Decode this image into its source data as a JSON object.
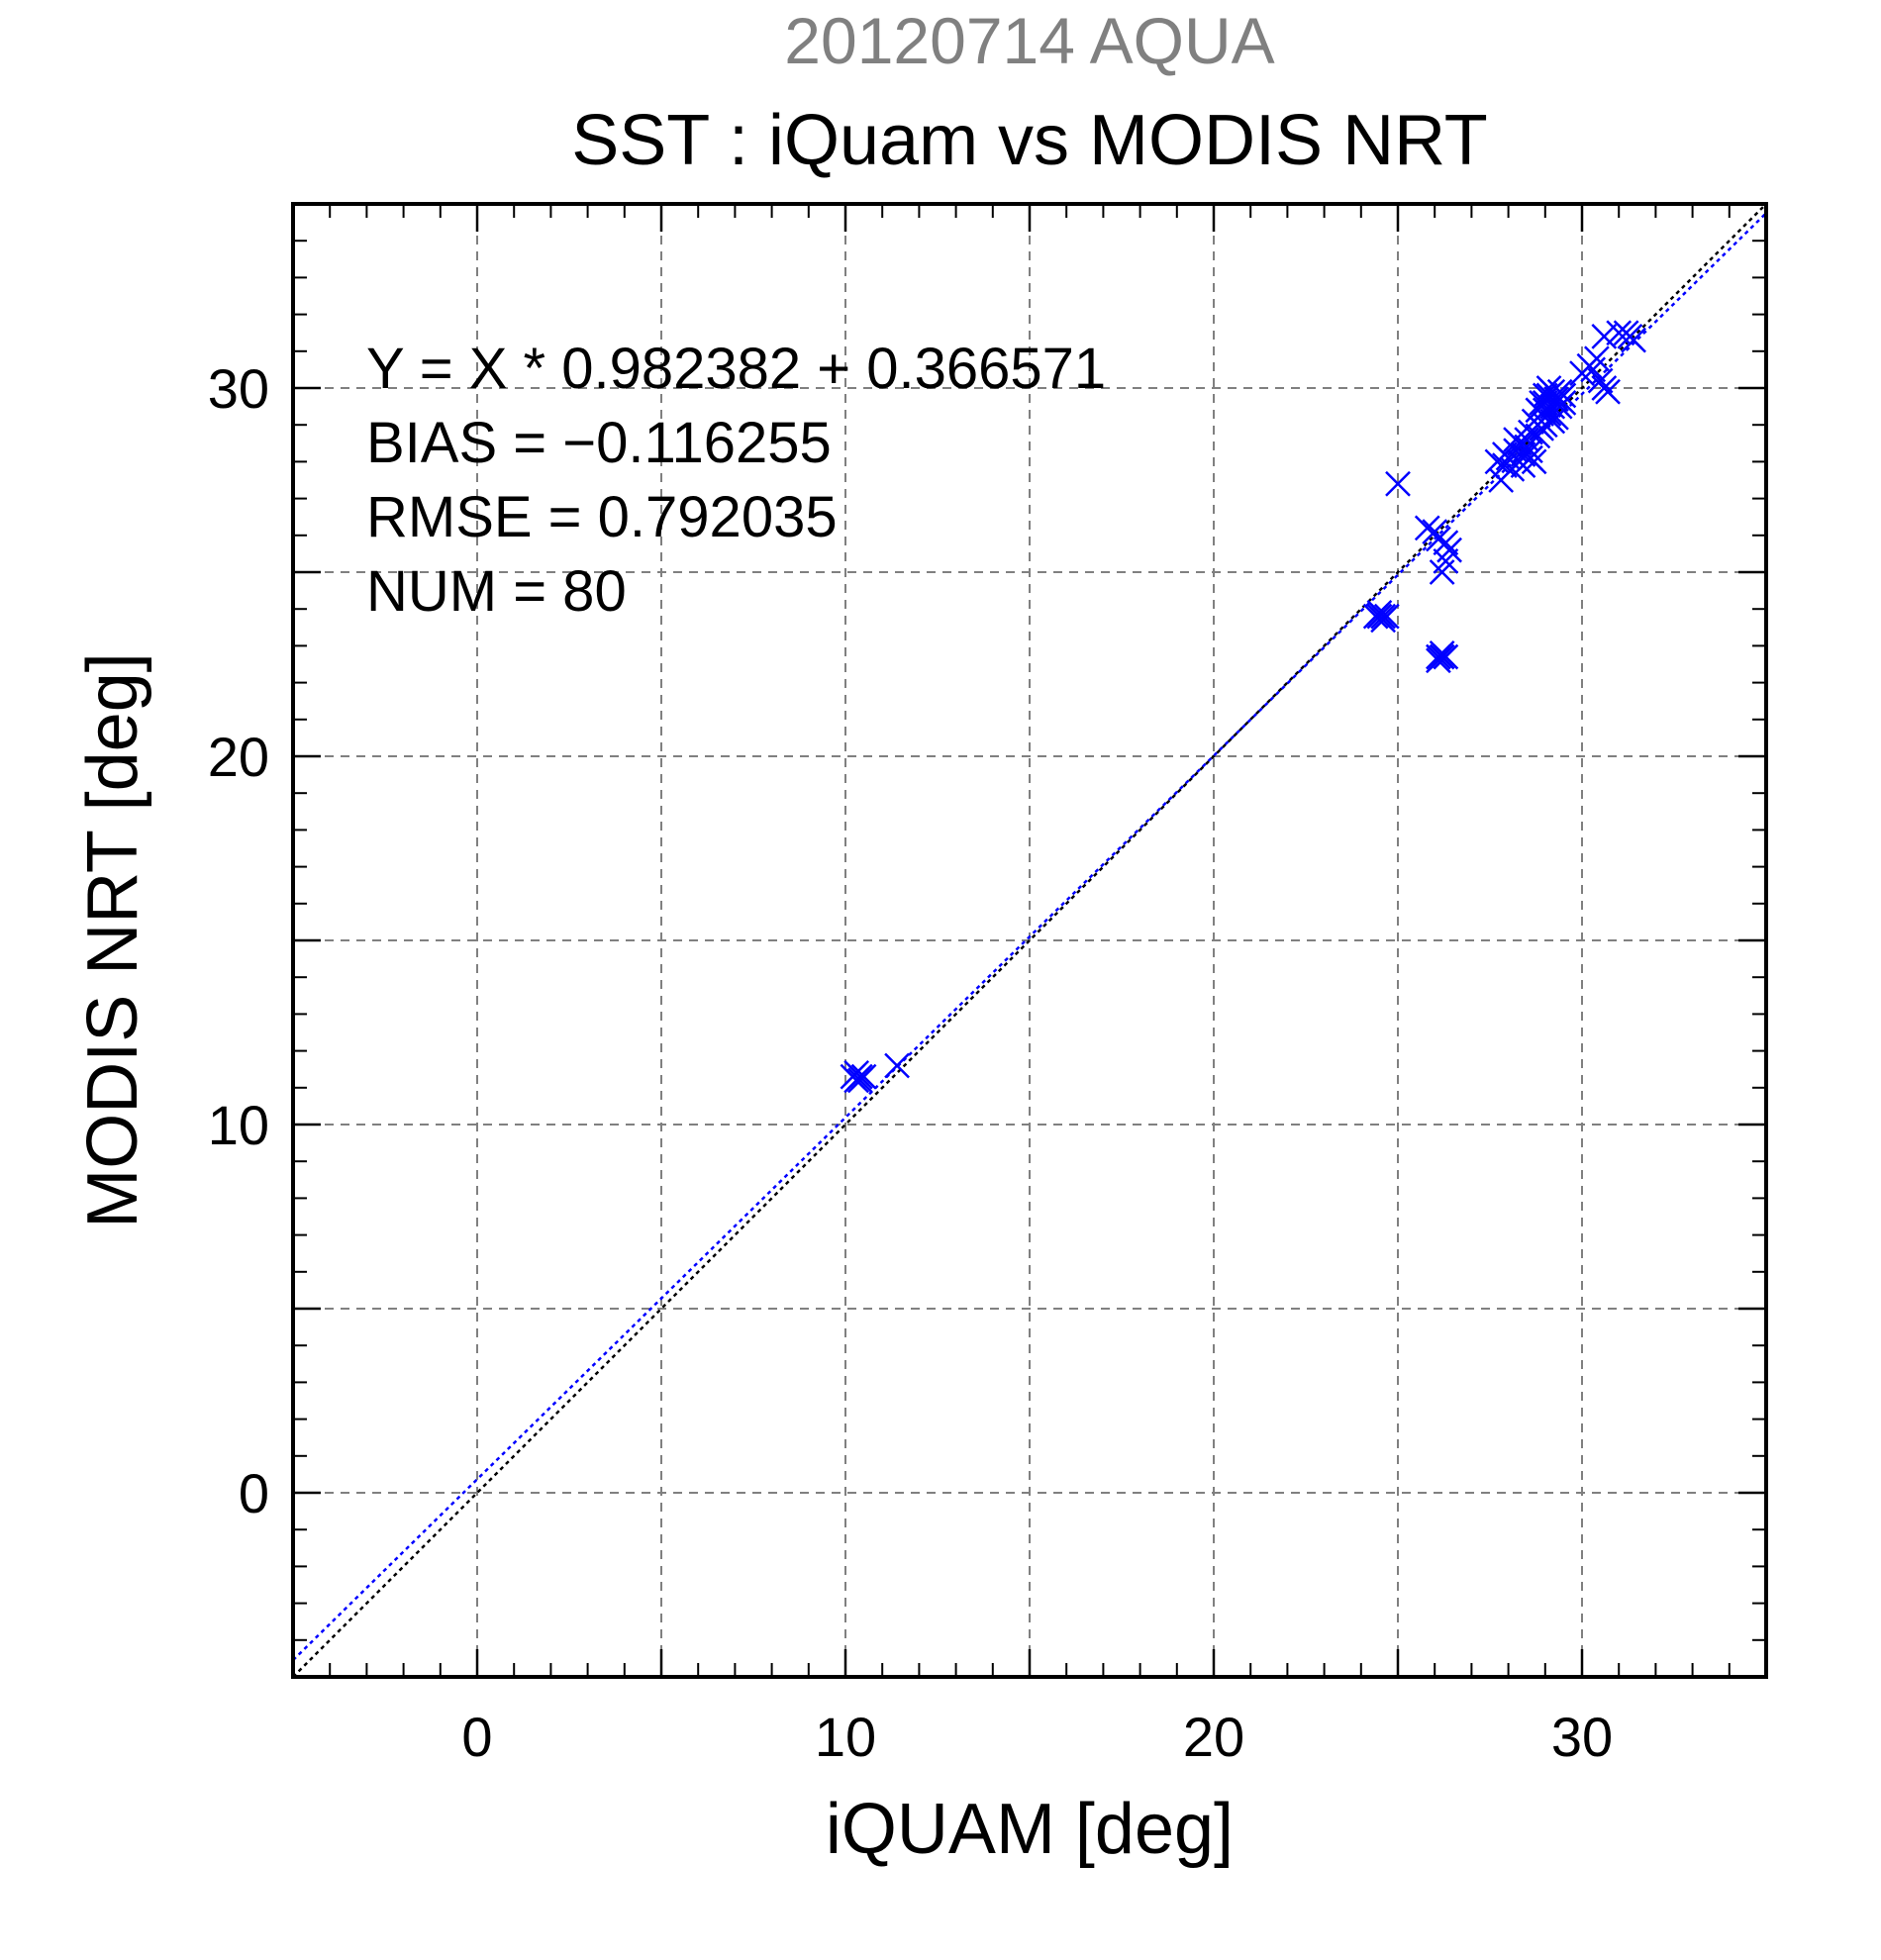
{
  "chart_data": {
    "type": "scatter",
    "supertitle": "20120714 AQUA",
    "title": "SST : iQuam vs MODIS NRT",
    "xlabel": "iQUAM [deg]",
    "ylabel": "MODIS NRT [deg]",
    "xlim": [
      -5,
      35
    ],
    "ylim": [
      -5,
      35
    ],
    "xticks": [
      0,
      10,
      20,
      30
    ],
    "yticks": [
      0,
      10,
      20,
      30
    ],
    "xtick_labels": [
      "0",
      "10",
      "20",
      "30"
    ],
    "ytick_labels": [
      "0",
      "10",
      "20",
      "30"
    ],
    "grid": true,
    "grid_step": 5,
    "annotations": [
      "Y = X * 0.982382 + 0.366571",
      "BIAS = −0.116255",
      "RMSE = 0.792035",
      "NUM = 80"
    ],
    "series": [
      {
        "marker": "x",
        "color": "#0000ff",
        "points": [
          [
            10.2,
            11.3
          ],
          [
            10.3,
            11.2
          ],
          [
            10.4,
            11.3
          ],
          [
            10.5,
            11.3
          ],
          [
            10.4,
            11.2
          ],
          [
            10.3,
            11.4
          ],
          [
            11.4,
            11.6
          ],
          [
            24.4,
            23.8
          ],
          [
            24.5,
            23.8
          ],
          [
            24.6,
            23.8
          ],
          [
            24.7,
            23.8
          ],
          [
            24.5,
            23.9
          ],
          [
            24.6,
            23.7
          ],
          [
            26.1,
            22.7
          ],
          [
            26.2,
            22.7
          ],
          [
            26.3,
            22.7
          ],
          [
            26.2,
            22.8
          ],
          [
            26.1,
            22.6
          ],
          [
            25.0,
            27.4
          ],
          [
            25.8,
            26.2
          ],
          [
            26.0,
            26.1
          ],
          [
            26.3,
            25.8
          ],
          [
            26.4,
            25.6
          ],
          [
            26.2,
            25.0
          ],
          [
            26.3,
            25.3
          ],
          [
            26.1,
            25.9
          ],
          [
            27.8,
            27.5
          ],
          [
            27.9,
            27.9
          ],
          [
            28.0,
            28.1
          ],
          [
            28.2,
            28.3
          ],
          [
            28.3,
            28.0
          ],
          [
            28.4,
            27.9
          ],
          [
            28.5,
            28.4
          ],
          [
            28.6,
            28.1
          ],
          [
            28.7,
            28.0
          ],
          [
            28.5,
            28.6
          ],
          [
            28.3,
            28.5
          ],
          [
            28.8,
            28.7
          ],
          [
            28.8,
            29.0
          ],
          [
            28.9,
            29.3
          ],
          [
            29.0,
            29.6
          ],
          [
            29.1,
            29.8
          ],
          [
            29.2,
            29.5
          ],
          [
            29.0,
            29.0
          ],
          [
            29.3,
            29.7
          ],
          [
            29.4,
            29.5
          ],
          [
            29.1,
            30.0
          ],
          [
            29.2,
            29.9
          ],
          [
            28.9,
            29.6
          ],
          [
            29.5,
            29.8
          ],
          [
            29.0,
            29.4
          ],
          [
            29.3,
            29.2
          ],
          [
            28.7,
            29.1
          ],
          [
            29.1,
            29.3
          ],
          [
            29.4,
            29.9
          ],
          [
            28.9,
            28.9
          ],
          [
            29.2,
            29.1
          ],
          [
            29.0,
            29.8
          ],
          [
            28.6,
            28.8
          ],
          [
            29.3,
            29.6
          ],
          [
            28.8,
            29.4
          ],
          [
            29.5,
            29.6
          ],
          [
            30.0,
            30.4
          ],
          [
            30.2,
            30.6
          ],
          [
            30.4,
            30.8
          ],
          [
            30.5,
            30.2
          ],
          [
            30.6,
            30.0
          ],
          [
            30.7,
            29.9
          ],
          [
            30.3,
            30.5
          ],
          [
            30.6,
            31.4
          ],
          [
            31.0,
            31.5
          ],
          [
            31.3,
            31.4
          ],
          [
            31.4,
            31.3
          ],
          [
            31.2,
            31.5
          ],
          [
            27.9,
            28.2
          ],
          [
            28.1,
            27.8
          ],
          [
            28.4,
            28.2
          ],
          [
            28.6,
            28.3
          ],
          [
            27.7,
            28.0
          ],
          [
            28.2,
            28.6
          ]
        ]
      }
    ],
    "lines": [
      {
        "name": "",
        "kind": "regression",
        "slope": 0.982382,
        "intercept": 0.366571,
        "color": "#0000ff",
        "style": "dotted"
      },
      {
        "name": "",
        "kind": "identity",
        "slope": 1,
        "intercept": 0,
        "color": "#000000",
        "style": "dotted"
      }
    ],
    "colors": {
      "markers": "#0000ff",
      "supertitle": "#808080",
      "grid": "#808080",
      "axes": "#000000"
    }
  }
}
